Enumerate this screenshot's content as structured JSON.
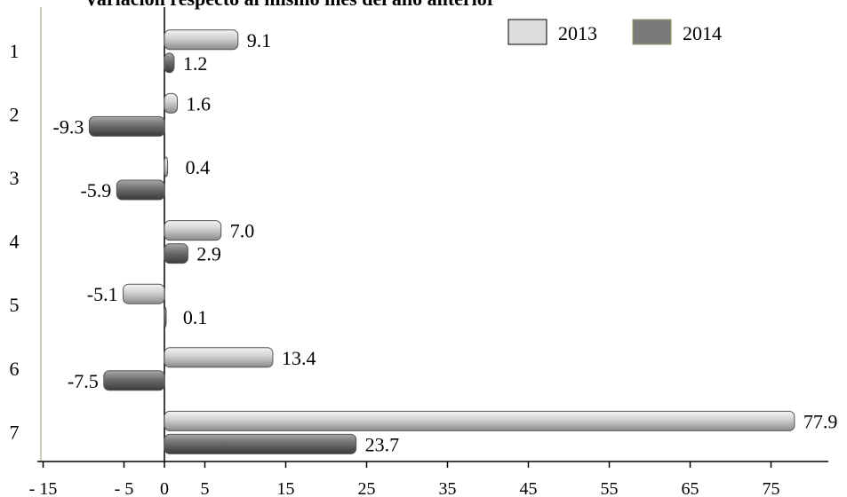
{
  "chart_data": {
    "type": "bar",
    "orientation": "horizontal",
    "title": "Variación respecto al mismo mes del año anterior",
    "categories": [
      "1",
      "2",
      "3",
      "4",
      "5",
      "6",
      "7"
    ],
    "series": [
      {
        "name": "2013",
        "values": [
          9.1,
          1.6,
          0.4,
          7.0,
          -5.1,
          13.4,
          77.9
        ],
        "labels": [
          "9.1",
          "1.6",
          "0.4",
          "7.0",
          "-5.1",
          "13.4",
          "77.9"
        ],
        "color": "#d9d9d9"
      },
      {
        "name": "2014",
        "values": [
          1.2,
          -9.3,
          -5.9,
          2.9,
          0.1,
          -7.5,
          23.7
        ],
        "labels": [
          "1.2",
          "-9.3",
          "-5.9",
          "2.9",
          "0.1",
          "-7.5",
          "23.7"
        ],
        "color": "#7f7f7f"
      }
    ],
    "x_ticks": [
      -15,
      -5,
      0,
      5,
      15,
      25,
      35,
      45,
      55,
      65,
      75
    ],
    "x_tick_labels": [
      "- 15",
      "- 5",
      "0",
      "5",
      "15",
      "25",
      "35",
      "45",
      "55",
      "65",
      "75"
    ],
    "xlim": [
      -15,
      81
    ],
    "legend_position": "top-right",
    "grid": false
  }
}
